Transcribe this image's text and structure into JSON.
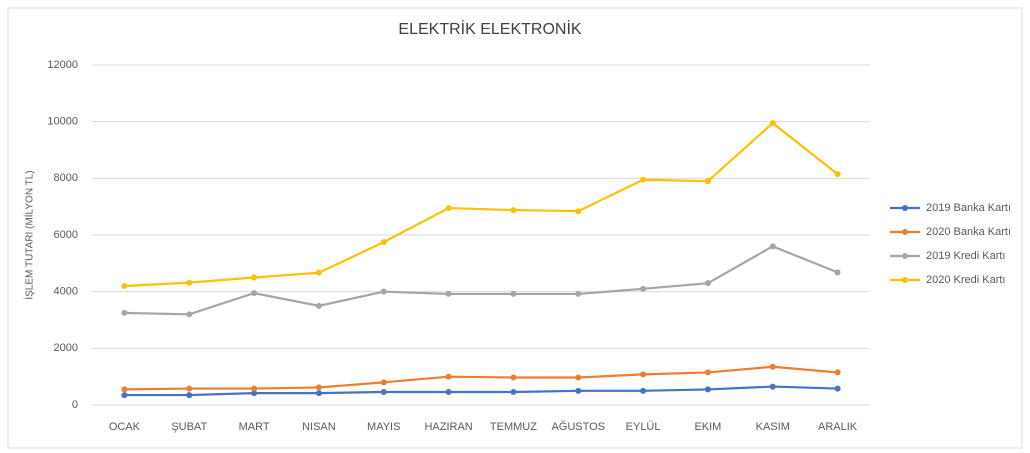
{
  "chart_data": {
    "type": "line",
    "title": "ELEKTRİK ELEKTRONİK",
    "y_label": "İŞLEM TUTARI (MİLYON TL)",
    "categories": [
      "OCAK",
      "ŞUBAT",
      "MART",
      "NISAN",
      "MAYIS",
      "HAZIRAN",
      "TEMMUZ",
      "AĞUSTOS",
      "EYLÜL",
      "EKIM",
      "KASIM",
      "ARALIK"
    ],
    "series": [
      {
        "name": "2019 Banka Kartı",
        "color": "#4472c4",
        "values": [
          350,
          350,
          420,
          420,
          460,
          460,
          460,
          500,
          500,
          550,
          650,
          580
        ]
      },
      {
        "name": "2020 Banka Kartı",
        "color": "#ed7d31",
        "values": [
          550,
          580,
          580,
          620,
          800,
          1000,
          970,
          970,
          1080,
          1150,
          1350,
          1150
        ]
      },
      {
        "name": "2019 Kredi Kartı",
        "color": "#a5a5a5",
        "values": [
          3250,
          3200,
          3950,
          3500,
          4000,
          3920,
          3920,
          3920,
          4100,
          4300,
          5600,
          4680
        ]
      },
      {
        "name": "2020 Kredi Kartı",
        "color": "#ffc000",
        "values": [
          4200,
          4320,
          4500,
          4670,
          5750,
          6950,
          6880,
          6840,
          7950,
          7900,
          9950,
          8150
        ]
      }
    ],
    "ylim": [
      0,
      12000
    ],
    "yticks": [
      0,
      2000,
      4000,
      6000,
      8000,
      10000,
      12000
    ],
    "grid": true,
    "legend": "right"
  }
}
